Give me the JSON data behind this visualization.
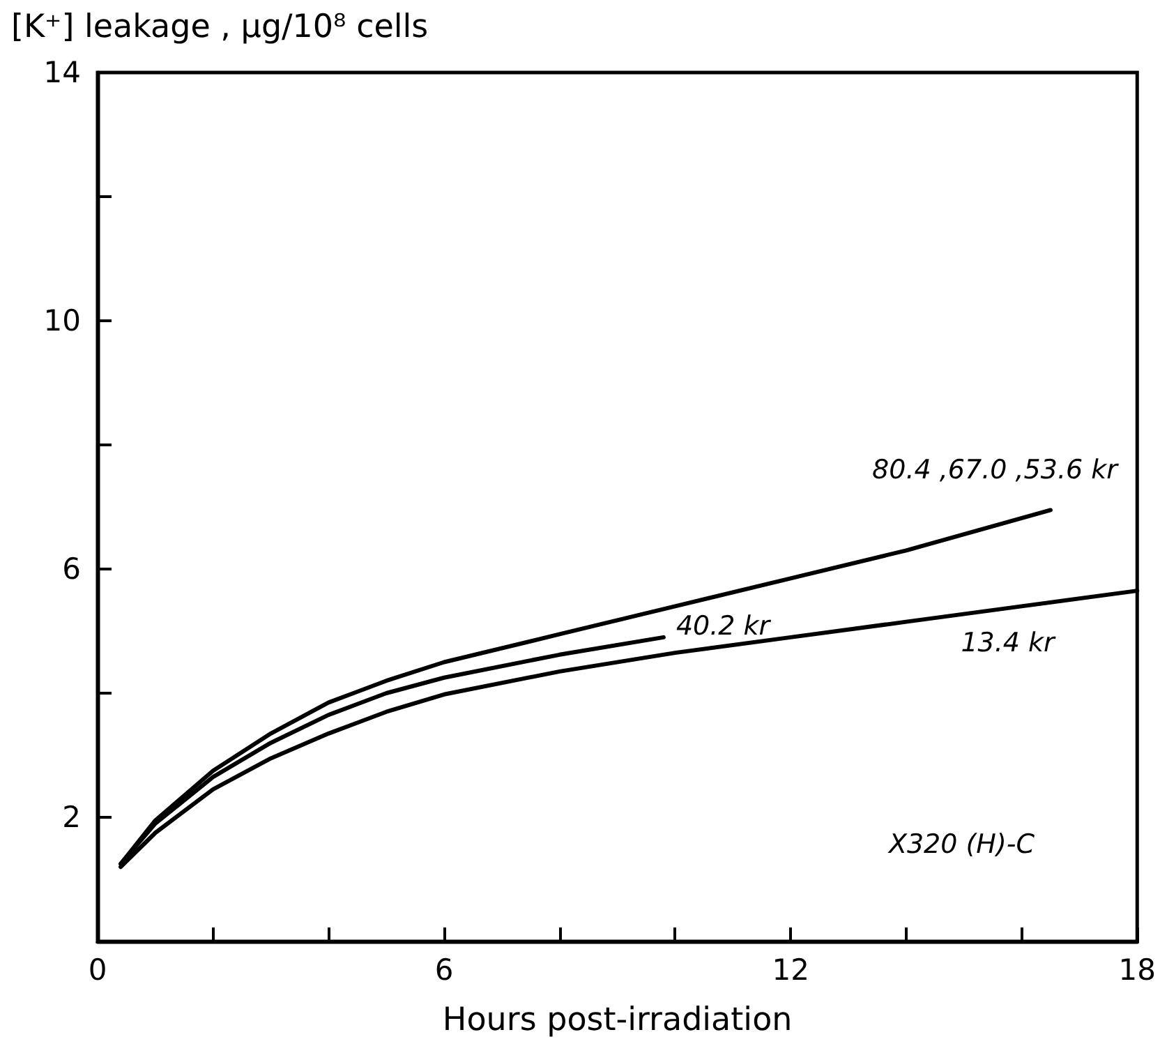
{
  "chart_data": {
    "type": "line",
    "ylabel": "[K⁺] leakage , μg/10⁸ cells",
    "xlabel": "Hours post-irradiation",
    "xlim": [
      0,
      18
    ],
    "xticks": [
      0,
      {
        "value": 2,
        "label": null
      },
      {
        "value": 4,
        "label": null
      },
      6,
      {
        "value": 8,
        "label": null
      },
      {
        "value": 10,
        "label": null
      },
      12,
      {
        "value": 14,
        "label": null
      },
      {
        "value": 16,
        "label": null
      },
      18
    ],
    "ylim": [
      0,
      14
    ],
    "yticks": [
      2,
      {
        "value": 4,
        "label": null
      },
      6,
      {
        "value": 8,
        "label": null
      },
      10,
      {
        "value": 12,
        "label": null
      },
      14
    ],
    "grid": false,
    "legend": false,
    "marker": "none",
    "line_style": "solid",
    "annotations": [
      "X320 (H)-C"
    ],
    "series": [
      {
        "name": "80.4 ,67.0 ,53.6 kr",
        "color": "#000000",
        "x": [
          0.4,
          1,
          2,
          3,
          4,
          5,
          6,
          8,
          10,
          12,
          14,
          16.5
        ],
        "values": [
          1.25,
          1.95,
          2.75,
          3.35,
          3.85,
          4.2,
          4.5,
          4.95,
          5.4,
          5.85,
          6.3,
          6.95
        ]
      },
      {
        "name": "40.2 kr",
        "color": "#000000",
        "x": [
          0.4,
          1,
          2,
          3,
          4,
          5,
          6,
          8,
          9.8
        ],
        "values": [
          1.25,
          1.9,
          2.65,
          3.2,
          3.65,
          4.0,
          4.25,
          4.62,
          4.9
        ]
      },
      {
        "name": "13.4 kr",
        "color": "#000000",
        "x": [
          0.4,
          1,
          2,
          3,
          4,
          5,
          6,
          8,
          10,
          12,
          14,
          16,
          18
        ],
        "values": [
          1.2,
          1.75,
          2.45,
          2.95,
          3.35,
          3.7,
          3.98,
          4.35,
          4.65,
          4.9,
          5.15,
          5.4,
          5.65
        ]
      }
    ]
  }
}
